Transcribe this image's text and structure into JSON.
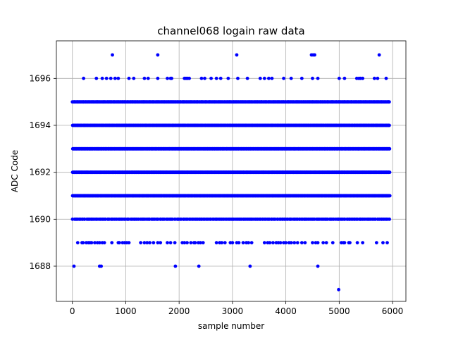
{
  "chart_data": {
    "type": "scatter",
    "title": "channel068 logain raw data",
    "xlabel": "sample number",
    "ylabel": "ADC Code",
    "xlim": [
      -300,
      6250
    ],
    "ylim": [
      1686.5,
      1697.6
    ],
    "x_ticks": [
      0,
      1000,
      2000,
      3000,
      4000,
      5000,
      6000
    ],
    "y_ticks": [
      1688,
      1690,
      1692,
      1694,
      1696
    ],
    "grid": true,
    "marker_color": "#0000ff",
    "series": [
      {
        "dense_levels": [
          {
            "y": 1695,
            "x_start": 0,
            "x_end": 5950,
            "count": 420
          },
          {
            "y": 1694,
            "x_start": 0,
            "x_end": 5950,
            "count": 520
          },
          {
            "y": 1693,
            "x_start": 0,
            "x_end": 5950,
            "count": 700
          },
          {
            "y": 1692,
            "x_start": 0,
            "x_end": 5950,
            "count": 700
          },
          {
            "y": 1691,
            "x_start": 0,
            "x_end": 5950,
            "count": 560
          },
          {
            "y": 1690,
            "x_start": 0,
            "x_end": 5950,
            "count": 260
          }
        ],
        "sparse_points": [
          {
            "y": 1697,
            "x": [
              750,
              1600,
              3080,
              4480,
              4510,
              4540,
              5750
            ]
          },
          {
            "y": 1696,
            "x": [
              210,
              450,
              560,
              640,
              720,
              800,
              860,
              1060,
              1150,
              1350,
              1420,
              1600,
              1780,
              1840,
              1860,
              2100,
              2130,
              2160,
              2190,
              2420,
              2480,
              2600,
              2700,
              2780,
              2920,
              3100,
              3280,
              3520,
              3600,
              3680,
              3740,
              3960,
              4100,
              4300,
              4500,
              4600,
              5000,
              5100,
              5330,
              5370,
              5400,
              5440,
              5660,
              5720,
              5880
            ]
          },
          {
            "y": 1689,
            "x": [
              100,
              180,
              200,
              260,
              300,
              330,
              360,
              420,
              470,
              510,
              560,
              600,
              740,
              860,
              880,
              940,
              980,
              1020,
              1060,
              1280,
              1350,
              1400,
              1450,
              1520,
              1600,
              1650,
              1780,
              1840,
              1920,
              2060,
              2100,
              2150,
              2220,
              2280,
              2300,
              2360,
              2400,
              2450,
              2700,
              2760,
              2800,
              2860,
              2960,
              3000,
              3080,
              3120,
              3200,
              3260,
              3300,
              3360,
              3600,
              3660,
              3700,
              3760,
              3820,
              3860,
              3900,
              3960,
              4000,
              4060,
              4100,
              4160,
              4220,
              4300,
              4360,
              4500,
              4560,
              4600,
              4700,
              4760,
              4880,
              5040,
              5080,
              5100,
              5180,
              5200,
              5340,
              5440,
              5700,
              5820,
              5900
            ]
          },
          {
            "y": 1688,
            "x": [
              30,
              510,
              540,
              1930,
              2370,
              3330,
              4600
            ]
          },
          {
            "y": 1687,
            "x": [
              4990
            ]
          }
        ]
      }
    ]
  }
}
